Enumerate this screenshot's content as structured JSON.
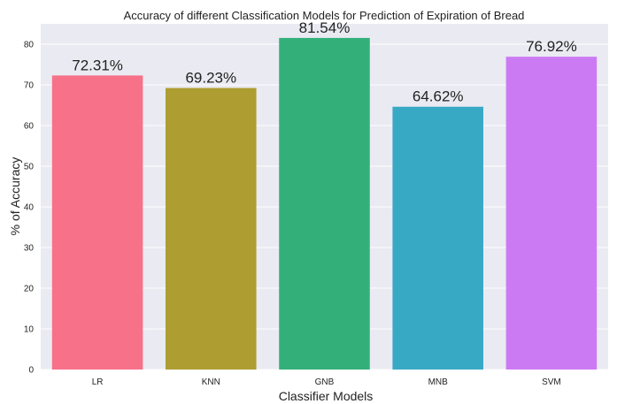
{
  "chart_data": {
    "type": "bar",
    "title": "Accuracy of different Classification Models for Prediction of Expiration of Bread",
    "xlabel": "Classifier Models",
    "ylabel": "% of Accuracy",
    "categories": [
      "LR",
      "KNN",
      "GNB",
      "MNB",
      "SVM"
    ],
    "values": [
      72.31,
      69.23,
      81.54,
      64.62,
      76.92
    ],
    "data_labels": [
      "72.31%",
      "69.23%",
      "81.54%",
      "64.62%",
      "76.92%"
    ],
    "colors": [
      "#f77189",
      "#ae9d31",
      "#33b07a",
      "#38a9c5",
      "#cc7af4"
    ],
    "yticks": [
      "0",
      "10",
      "20",
      "30",
      "40",
      "50",
      "60",
      "70",
      "80"
    ],
    "ylim": [
      0,
      85
    ],
    "grid": true,
    "background": "#eaeaf2"
  }
}
